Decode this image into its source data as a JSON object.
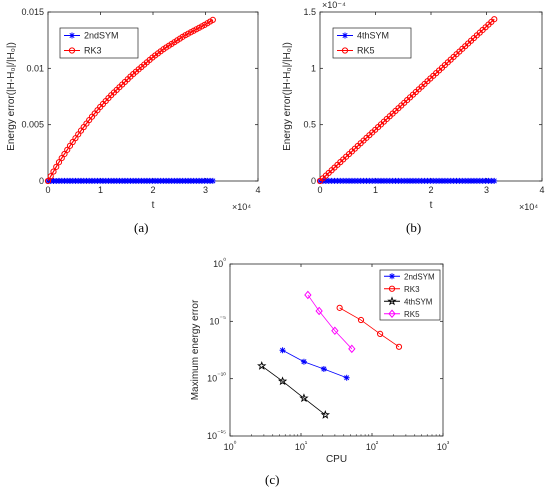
{
  "captions": {
    "a": "(a)",
    "b": "(b)",
    "c": "(c)"
  },
  "chart_data": [
    {
      "type": "line",
      "panel": "a",
      "xlabel": "t",
      "ylabel": "Energy error(|H-H₀|/|H₀|)",
      "x_multiplier_label": "×10⁴",
      "xlim": [
        0,
        40000
      ],
      "ylim": [
        0,
        0.015
      ],
      "xticks": [
        0,
        10000,
        20000,
        30000,
        40000
      ],
      "xtick_labels": [
        "0",
        "1",
        "2",
        "3",
        "4"
      ],
      "yticks": [
        0,
        0.005,
        0.01,
        0.015
      ],
      "ytick_labels": [
        "0",
        "0.005",
        "0.01",
        "0.015"
      ],
      "legend_position": "top-left",
      "series": [
        {
          "name": "2ndSYM",
          "color": "#0000ff",
          "marker": "asterisk",
          "x": [
            0,
            3000,
            6000,
            9000,
            12000,
            15000,
            18000,
            21000,
            24000,
            27000,
            30000,
            31400
          ],
          "y": [
            0,
            1e-05,
            1e-05,
            1e-05,
            1e-05,
            1e-05,
            1e-05,
            1e-05,
            1e-05,
            1e-05,
            1e-05,
            1e-05
          ]
        },
        {
          "name": "RK3",
          "color": "#ff0000",
          "marker": "circle",
          "x": [
            0,
            2000,
            4000,
            6000,
            8000,
            10000,
            12000,
            14000,
            16000,
            18000,
            20000,
            22000,
            24000,
            26000,
            28000,
            30000,
            31400
          ],
          "y": [
            0,
            0.0016,
            0.003,
            0.0043,
            0.0055,
            0.0066,
            0.0076,
            0.0085,
            0.0094,
            0.0102,
            0.011,
            0.0117,
            0.0123,
            0.0129,
            0.0134,
            0.0139,
            0.0143
          ]
        }
      ]
    },
    {
      "type": "line",
      "panel": "b",
      "xlabel": "t",
      "ylabel": "Energy error(|H-H₀|/|H₀|)",
      "x_multiplier_label": "×10⁴",
      "y_multiplier_label": "×10⁻⁴",
      "xlim": [
        0,
        40000
      ],
      "ylim": [
        0,
        0.00015
      ],
      "xticks": [
        0,
        10000,
        20000,
        30000,
        40000
      ],
      "xtick_labels": [
        "0",
        "1",
        "2",
        "3",
        "4"
      ],
      "yticks": [
        0,
        5e-05,
        0.0001,
        0.00015
      ],
      "ytick_labels": [
        "0",
        "0.5",
        "1",
        "1.5"
      ],
      "legend_position": "top-left",
      "series": [
        {
          "name": "4thSYM",
          "color": "#0000ff",
          "marker": "asterisk",
          "x": [
            0,
            3000,
            6000,
            9000,
            12000,
            15000,
            18000,
            21000,
            24000,
            27000,
            30000,
            31400
          ],
          "y": [
            0,
            1e-07,
            1e-07,
            1e-07,
            1e-07,
            1e-07,
            1e-07,
            1e-07,
            1e-07,
            1e-07,
            1e-07,
            1e-07
          ]
        },
        {
          "name": "RK5",
          "color": "#ff0000",
          "marker": "circle",
          "x": [
            0,
            2000,
            4000,
            6000,
            8000,
            10000,
            12000,
            14000,
            16000,
            18000,
            20000,
            22000,
            24000,
            26000,
            28000,
            30000,
            31400
          ],
          "y": [
            0,
            9.1e-06,
            1.83e-05,
            2.74e-05,
            3.66e-05,
            4.57e-05,
            5.49e-05,
            6.4e-05,
            7.32e-05,
            8.23e-05,
            9.15e-05,
            0.0001006,
            0.0001098,
            0.0001189,
            0.0001281,
            0.0001372,
            0.0001436
          ]
        }
      ]
    },
    {
      "type": "line",
      "panel": "c",
      "xlabel": "CPU",
      "ylabel": "Maximum energy error",
      "xscale": "log",
      "yscale": "log",
      "xlim": [
        1,
        1000
      ],
      "ylim": [
        1e-15,
        1
      ],
      "xticks": [
        1,
        10,
        100,
        1000
      ],
      "xtick_labels": [
        "10⁰",
        "10¹",
        "10²",
        "10³"
      ],
      "yticks": [
        1e-15,
        1e-10,
        1e-05,
        1
      ],
      "ytick_labels": [
        "10⁻¹⁵",
        "10⁻¹⁰",
        "10⁻⁵",
        "10⁰"
      ],
      "legend_position": "top-right",
      "series": [
        {
          "name": "2ndSYM",
          "color": "#0000ff",
          "marker": "asterisk",
          "x": [
            5.5,
            11,
            21,
            44
          ],
          "y": [
            3e-08,
            3e-09,
            7e-10,
            1.2e-10
          ]
        },
        {
          "name": "RK3",
          "color": "#ff0000",
          "marker": "circle",
          "x": [
            35,
            70,
            130,
            240
          ],
          "y": [
            0.00015,
            1.3e-05,
            8e-07,
            6e-08
          ]
        },
        {
          "name": "4thSYM",
          "color": "#000000",
          "marker": "pentagram",
          "x": [
            2.8,
            5.5,
            11,
            22
          ],
          "y": [
            1.3e-09,
            6e-11,
            2e-12,
            7e-14
          ]
        },
        {
          "name": "RK5",
          "color": "#ff00ff",
          "marker": "diamond",
          "x": [
            12.5,
            18,
            30,
            52
          ],
          "y": [
            0.002,
            8e-05,
            1.5e-06,
            4e-08
          ]
        }
      ]
    }
  ]
}
